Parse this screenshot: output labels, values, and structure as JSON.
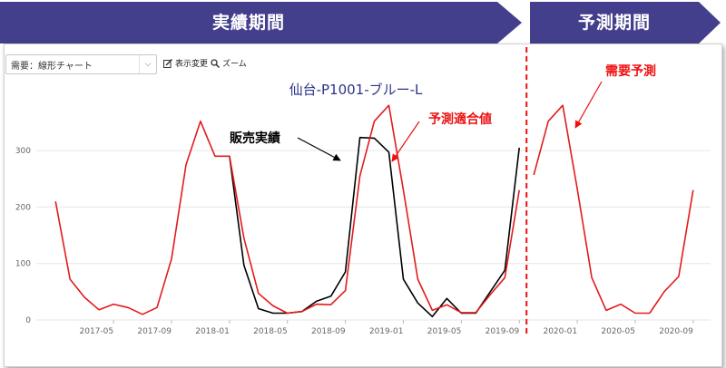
{
  "banners": {
    "actual_period": "実績期間",
    "forecast_period": "予測期間",
    "color": "#443f8c"
  },
  "toolbar": {
    "select_value": "需要：線形チャート",
    "display_change_label": "表示変更",
    "zoom_label": "ズーム"
  },
  "annotations": {
    "actual_sales": "販売実績",
    "fitted_forecast": "予測適合値",
    "demand_forecast": "需要予測"
  },
  "chart_data": {
    "type": "line",
    "title": "仙台-P1001-ブルー-L",
    "xlabel": "",
    "ylabel": "",
    "ylim": [
      0,
      390
    ],
    "yticks": [
      0,
      100,
      200,
      300
    ],
    "xlim": [
      "2016-12",
      "2020-10"
    ],
    "xticks": [
      "2017-05",
      "2017-09",
      "2018-01",
      "2018-05",
      "2018-09",
      "2019-01",
      "2019-05",
      "2019-09",
      "2020-01",
      "2020-05",
      "2020-09"
    ],
    "xtick_labels": [
      "2017-05",
      "2017-09",
      "2018-01",
      "2018-05",
      "2018-09",
      "2019-01",
      "2019-05",
      "2019-09",
      "2020-01",
      "2020-05",
      "2020-09"
    ],
    "grid": true,
    "forecast_start": "2019-09",
    "series": [
      {
        "name": "販売実績",
        "color": "#000000",
        "x": [
          "2018-01",
          "2018-02",
          "2018-03",
          "2018-04",
          "2018-05",
          "2018-06",
          "2018-07",
          "2018-08",
          "2018-09",
          "2018-10",
          "2018-11",
          "2018-12",
          "2019-01",
          "2019-02",
          "2019-03",
          "2019-04",
          "2019-05",
          "2019-06",
          "2019-07",
          "2019-08",
          "2019-09"
        ],
        "values": [
          290,
          97,
          20,
          12,
          12,
          15,
          33,
          42,
          85,
          323,
          322,
          297,
          72,
          30,
          6,
          38,
          12,
          12,
          50,
          88,
          305
        ]
      },
      {
        "name": "予測適合値",
        "color": "#e31a1c",
        "x": [
          "2017-01",
          "2017-02",
          "2017-03",
          "2017-04",
          "2017-05",
          "2017-06",
          "2017-07",
          "2017-08",
          "2017-09",
          "2017-10",
          "2017-11",
          "2017-12",
          "2018-01",
          "2018-02",
          "2018-03",
          "2018-04",
          "2018-05",
          "2018-06",
          "2018-07",
          "2018-08",
          "2018-09",
          "2018-10",
          "2018-11",
          "2018-12",
          "2019-01",
          "2019-02",
          "2019-03",
          "2019-04",
          "2019-05",
          "2019-06",
          "2019-07",
          "2019-08",
          "2019-09"
        ],
        "values": [
          210,
          72,
          40,
          18,
          28,
          22,
          10,
          22,
          108,
          275,
          352,
          290,
          290,
          145,
          47,
          25,
          12,
          15,
          28,
          27,
          52,
          255,
          352,
          380,
          230,
          72,
          17,
          27,
          13,
          13,
          45,
          75,
          230
        ]
      },
      {
        "name": "需要予測",
        "color": "#e31a1c",
        "x": [
          "2019-10",
          "2019-11",
          "2019-12",
          "2020-01",
          "2020-02",
          "2020-03",
          "2020-04",
          "2020-05",
          "2020-06",
          "2020-07",
          "2020-08",
          "2020-09",
          "2020-10"
        ],
        "values": [
          257,
          352,
          380,
          232,
          75,
          17,
          28,
          12,
          12,
          50,
          77,
          230,
          null
        ]
      }
    ]
  }
}
